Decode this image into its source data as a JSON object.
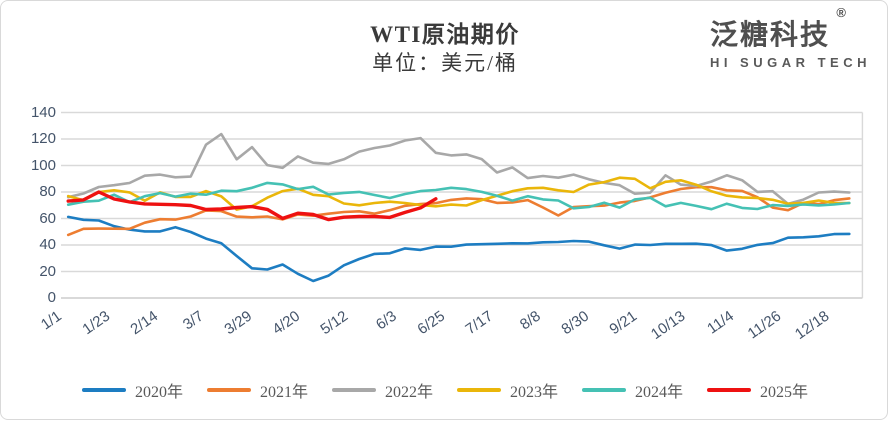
{
  "header": {
    "title": "WTI原油期价",
    "subtitle": "单位：美元/桶"
  },
  "logo": {
    "name": "泛糖科技",
    "registered_mark": "®",
    "tagline": "HI SUGAR TECH"
  },
  "colors": {
    "grid": "#d9d9d9",
    "axis_label": "#44546a",
    "title_text": "#3a3a3a",
    "legend_text": "#595959"
  },
  "chart_data": {
    "type": "line",
    "title": "WTI原油期价",
    "unit_label": "单位：美元/桶",
    "ylabel": "",
    "xlabel": "",
    "ylim": [
      0,
      140
    ],
    "y_ticks": [
      0,
      20,
      40,
      60,
      80,
      100,
      120,
      140
    ],
    "grid": true,
    "legend_position": "bottom",
    "x_range_days": [
      1,
      365
    ],
    "x_ticks": [
      {
        "day": 1,
        "label": "1/1"
      },
      {
        "day": 23,
        "label": "1/23"
      },
      {
        "day": 45,
        "label": "2/14"
      },
      {
        "day": 66,
        "label": "3/7"
      },
      {
        "day": 88,
        "label": "3/29"
      },
      {
        "day": 110,
        "label": "4/20"
      },
      {
        "day": 132,
        "label": "5/12"
      },
      {
        "day": 154,
        "label": "6/3"
      },
      {
        "day": 176,
        "label": "6/25"
      },
      {
        "day": 198,
        "label": "7/17"
      },
      {
        "day": 220,
        "label": "8/8"
      },
      {
        "day": 242,
        "label": "8/30"
      },
      {
        "day": 264,
        "label": "9/21"
      },
      {
        "day": 286,
        "label": "10/13"
      },
      {
        "day": 308,
        "label": "11/4"
      },
      {
        "day": 330,
        "label": "11/26"
      },
      {
        "day": 352,
        "label": "12/18"
      }
    ],
    "sample_days": [
      2,
      9,
      16,
      23,
      30,
      37,
      44,
      51,
      58,
      65,
      72,
      79,
      86,
      93,
      100,
      107,
      114,
      121,
      128,
      135,
      142,
      149,
      156,
      163,
      170,
      177,
      184,
      191,
      198,
      205,
      212,
      219,
      226,
      233,
      240,
      247,
      254,
      261,
      268,
      275,
      282,
      289,
      296,
      303,
      310,
      317,
      324,
      331,
      338,
      345,
      352,
      359
    ],
    "series": [
      {
        "name": "2020年",
        "color": "#1d7dc2",
        "values": [
          61.2,
          59.0,
          58.5,
          54.2,
          51.6,
          50.3,
          50.3,
          53.4,
          49.8,
          44.8,
          41.3,
          31.7,
          22.4,
          21.5,
          25.3,
          18.3,
          12.8,
          16.9,
          24.7,
          29.4,
          33.3,
          33.7,
          37.4,
          36.3,
          38.8,
          38.7,
          40.3,
          40.6,
          40.9,
          41.3,
          41.2,
          42.0,
          42.3,
          43.0,
          42.6,
          39.8,
          37.3,
          40.3,
          40.0,
          40.9,
          40.9,
          41.0,
          39.9,
          35.8,
          37.1,
          40.1,
          41.4,
          45.5,
          45.8,
          46.6,
          48.2,
          48.4
        ]
      },
      {
        "name": "2021年",
        "color": "#ed7d31",
        "values": [
          47.6,
          52.2,
          52.4,
          52.3,
          52.2,
          56.8,
          59.5,
          59.2,
          61.5,
          66.1,
          65.6,
          61.4,
          60.9,
          61.5,
          59.3,
          63.1,
          62.1,
          63.6,
          64.9,
          65.4,
          63.6,
          66.3,
          69.6,
          70.9,
          71.6,
          74.0,
          75.2,
          74.6,
          71.8,
          72.1,
          73.9,
          68.3,
          62.3,
          68.7,
          69.3,
          69.7,
          72.0,
          73.3,
          75.9,
          79.4,
          82.3,
          83.6,
          83.6,
          81.3,
          80.8,
          76.1,
          68.2,
          66.3,
          71.7,
          70.9,
          73.8,
          75.2
        ]
      },
      {
        "name": "2022年",
        "color": "#a8a8a8",
        "values": [
          76.1,
          78.9,
          83.8,
          85.1,
          86.8,
          92.3,
          93.1,
          91.1,
          91.6,
          115.7,
          123.7,
          104.7,
          113.9,
          100.3,
          98.3,
          106.9,
          102.1,
          101.2,
          104.7,
          110.5,
          113.2,
          115.1,
          118.9,
          120.7,
          109.6,
          107.6,
          108.4,
          104.8,
          94.7,
          98.6,
          90.5,
          92.1,
          90.8,
          93.1,
          89.6,
          86.9,
          85.1,
          78.7,
          79.5,
          92.6,
          85.6,
          84.5,
          87.9,
          92.6,
          88.9,
          80.1,
          80.6,
          71.0,
          74.3,
          79.6,
          80.3,
          79.6
        ]
      },
      {
        "name": "2023年",
        "color": "#eab60a",
        "values": [
          76.9,
          73.7,
          79.9,
          81.3,
          79.7,
          73.4,
          79.7,
          76.3,
          76.3,
          80.7,
          76.7,
          66.7,
          69.3,
          75.7,
          80.7,
          82.5,
          77.9,
          76.8,
          71.3,
          70.0,
          71.7,
          72.7,
          71.7,
          70.2,
          69.2,
          70.5,
          69.8,
          73.9,
          77.1,
          80.6,
          82.8,
          83.2,
          81.3,
          80.0,
          85.6,
          87.5,
          90.8,
          90.0,
          82.8,
          87.7,
          88.8,
          85.5,
          80.5,
          77.2,
          75.9,
          75.5,
          74.1,
          71.2,
          71.8,
          73.6,
          71.8,
          71.7
        ]
      },
      {
        "name": "2024年",
        "color": "#45c1b4",
        "values": [
          70.4,
          72.7,
          73.4,
          78.0,
          72.3,
          76.8,
          79.2,
          76.5,
          78.7,
          78.0,
          81.0,
          80.6,
          83.2,
          86.9,
          85.7,
          82.2,
          83.9,
          78.1,
          79.3,
          80.1,
          77.7,
          75.5,
          78.5,
          80.7,
          81.5,
          83.2,
          82.2,
          80.1,
          77.2,
          73.5,
          76.8,
          74.4,
          73.6,
          67.7,
          68.7,
          71.9,
          68.2,
          74.4,
          75.6,
          69.2,
          71.8,
          69.5,
          67.0,
          71.2,
          68.0,
          67.2,
          70.1,
          69.5,
          70.6,
          69.9,
          70.6,
          71.7
        ]
      },
      {
        "name": "2025年",
        "color": "#ee1111",
        "values": [
          73.1,
          74.0,
          80.0,
          74.7,
          72.5,
          71.0,
          70.7,
          70.4,
          69.8,
          66.8,
          67.2,
          68.3,
          69.0,
          66.9,
          60.1,
          64.0,
          63.0,
          59.2,
          61.0,
          61.5,
          61.5,
          60.8,
          64.6,
          68.0,
          74.9
        ]
      }
    ]
  }
}
